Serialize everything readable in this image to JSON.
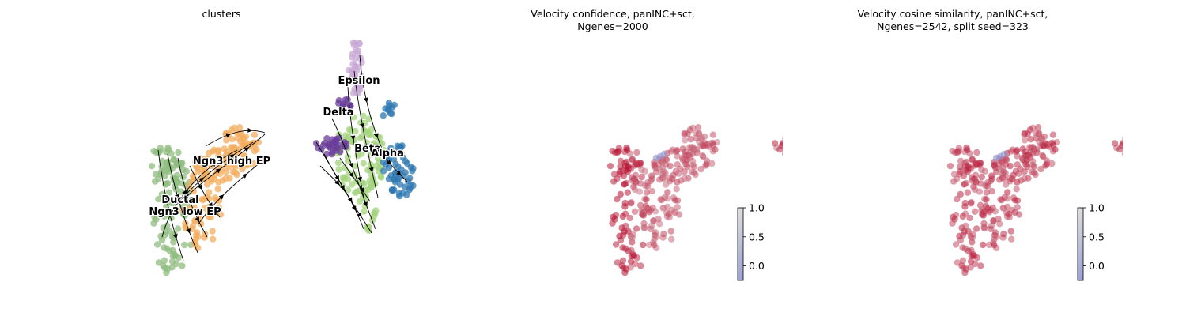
{
  "panels": [
    {
      "id": "clusters",
      "title_lines": [
        "clusters"
      ]
    },
    {
      "id": "velocity_confidence",
      "title_lines": [
        "Velocity confidence, panINC+sct,",
        "Ngenes=2000"
      ]
    },
    {
      "id": "velocity_cosine_similarity",
      "title_lines": [
        "Velocity cosine similarity, panINC+sct,",
        "Ngenes=2542, split seed=323"
      ]
    }
  ],
  "chart_data": [
    {
      "type": "scatter",
      "title": "clusters",
      "legend": "on data",
      "grid": false,
      "clusters": [
        {
          "name": "Ductal",
          "color": "#8fbc7f"
        },
        {
          "name": "Ngn3 low EP",
          "color": "#8fbc7f"
        },
        {
          "name": "Ngn3 high EP",
          "color": "#f3ad5f"
        },
        {
          "name": "Epsilon",
          "color": "#c8a8d5"
        },
        {
          "name": "Delta",
          "color": "#6a3d9a"
        },
        {
          "name": "Beta",
          "color": "#a4d47e"
        },
        {
          "name": "Alpha",
          "color": "#2f78b2"
        }
      ],
      "overlay": "velocity streamlines"
    },
    {
      "type": "scatter",
      "title": "Velocity confidence, panINC+sct,\nNgenes=2000",
      "colorbar": {
        "ticks": [
          "1.0",
          "0.5",
          "0.0"
        ],
        "range": [
          -0.25,
          1.0
        ],
        "colormap": "coolwarm"
      },
      "grid": false
    },
    {
      "type": "scatter",
      "title": "Velocity cosine similarity, panINC+sct,\nNgenes=2542, split seed=323",
      "colorbar": {
        "ticks": [
          "1.0",
          "0.5",
          "0.0"
        ],
        "range": [
          -0.25,
          1.0
        ],
        "colormap": "coolwarm"
      },
      "grid": false
    }
  ]
}
